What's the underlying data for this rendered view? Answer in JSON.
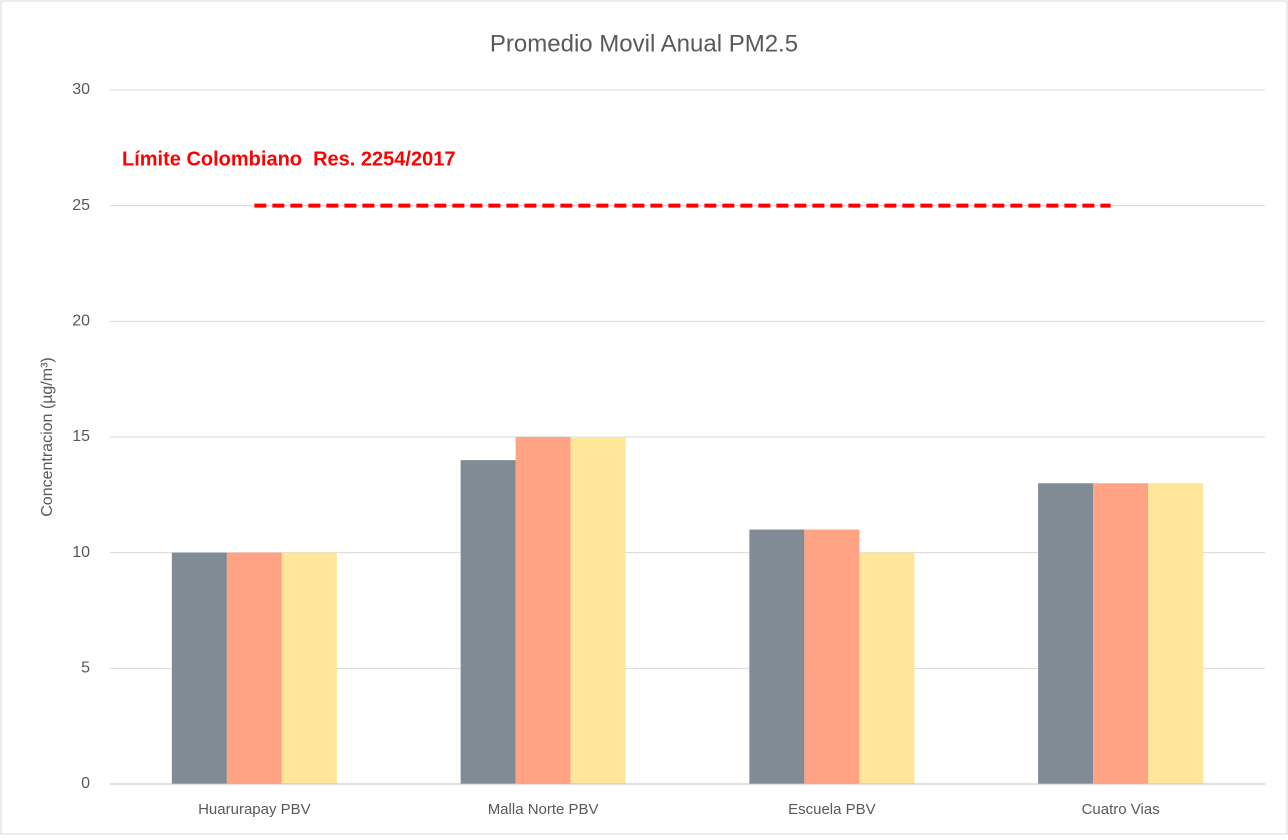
{
  "chart_data": {
    "type": "bar",
    "title": "Promedio Movil Anual PM2.5",
    "y_label": "Concentracion (µg/m³)",
    "categories": [
      "Huarurapay PBV",
      "Malla Norte PBV",
      "Escuela PBV",
      "Cuatro Vias"
    ],
    "series": [
      {
        "color": "#808b96",
        "values": [
          10,
          14,
          11,
          13
        ]
      },
      {
        "color": "#ffa384",
        "values": [
          10,
          15,
          11,
          13
        ]
      },
      {
        "color": "#ffe699",
        "values": [
          10,
          15,
          10,
          13
        ]
      }
    ],
    "ylim": [
      0,
      30
    ],
    "yticks": [
      0,
      5,
      10,
      15,
      20,
      25,
      30
    ],
    "grid": true,
    "reference_line": {
      "label": "Límite Colombiano  Res. 2254/2017",
      "value": 25,
      "color": "#ff0000"
    }
  }
}
